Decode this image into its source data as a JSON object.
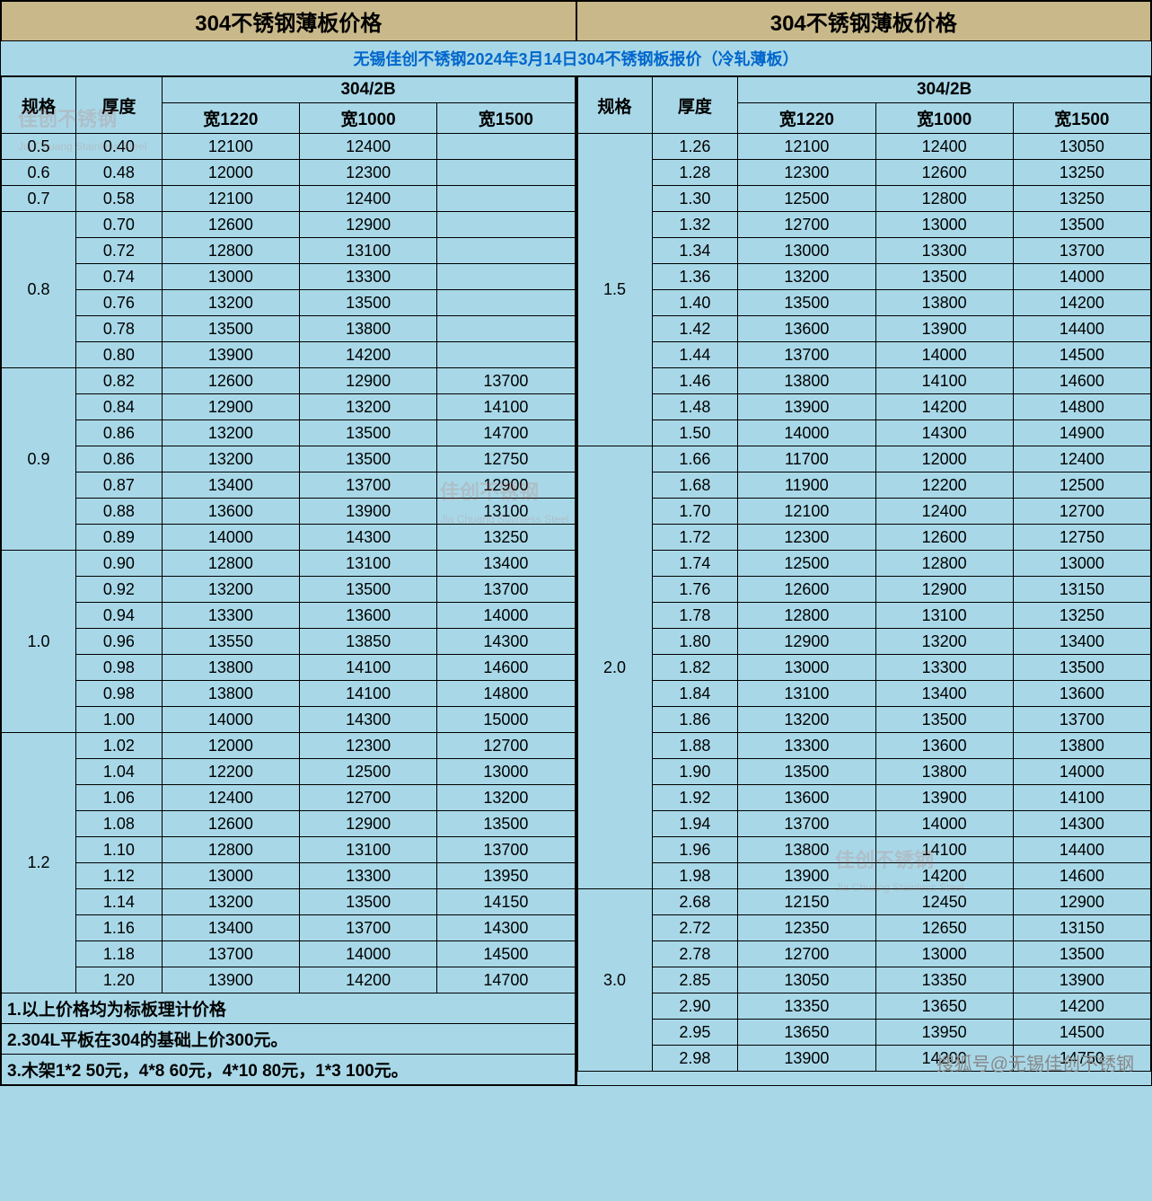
{
  "title_section": "304不锈钢薄板价格",
  "subtitle_text": "无锡佳创不锈钢2024年3月14日304不锈钢板报价（冷轧薄板）",
  "headers": {
    "spec": "规格",
    "thickness": "厚度",
    "finish": "304/2B",
    "w1220": "宽1220",
    "w1000": "宽1000",
    "w1500": "宽1500"
  },
  "colors": {
    "header_bg": "#c9b98a",
    "body_bg": "#a8d8e8",
    "subtitle_color": "#0066cc",
    "border": "#000000"
  },
  "typography": {
    "title_fontsize": 24,
    "subtitle_fontsize": 18,
    "header_fontsize": 19,
    "cell_fontsize": 18,
    "font_family": "Microsoft YaHei"
  },
  "left_groups": [
    {
      "spec": "0.5",
      "rows": [
        {
          "t": "0.40",
          "p": [
            "12100",
            "12400",
            ""
          ]
        }
      ]
    },
    {
      "spec": "0.6",
      "rows": [
        {
          "t": "0.48",
          "p": [
            "12000",
            "12300",
            ""
          ]
        }
      ]
    },
    {
      "spec": "0.7",
      "rows": [
        {
          "t": "0.58",
          "p": [
            "12100",
            "12400",
            ""
          ]
        }
      ]
    },
    {
      "spec": "0.8",
      "rows": [
        {
          "t": "0.70",
          "p": [
            "12600",
            "12900",
            ""
          ]
        },
        {
          "t": "0.72",
          "p": [
            "12800",
            "13100",
            ""
          ]
        },
        {
          "t": "0.74",
          "p": [
            "13000",
            "13300",
            ""
          ]
        },
        {
          "t": "0.76",
          "p": [
            "13200",
            "13500",
            ""
          ]
        },
        {
          "t": "0.78",
          "p": [
            "13500",
            "13800",
            ""
          ]
        },
        {
          "t": "0.80",
          "p": [
            "13900",
            "14200",
            ""
          ]
        }
      ]
    },
    {
      "spec": "0.9",
      "rows": [
        {
          "t": "0.82",
          "p": [
            "12600",
            "12900",
            "13700"
          ]
        },
        {
          "t": "0.84",
          "p": [
            "12900",
            "13200",
            "14100"
          ]
        },
        {
          "t": "0.86",
          "p": [
            "13200",
            "13500",
            "14700"
          ]
        },
        {
          "t": "0.86",
          "p": [
            "13200",
            "13500",
            "12750"
          ]
        },
        {
          "t": "0.87",
          "p": [
            "13400",
            "13700",
            "12900"
          ]
        },
        {
          "t": "0.88",
          "p": [
            "13600",
            "13900",
            "13100"
          ]
        },
        {
          "t": "0.89",
          "p": [
            "14000",
            "14300",
            "13250"
          ]
        }
      ]
    },
    {
      "spec": "1.0",
      "rows": [
        {
          "t": "0.90",
          "p": [
            "12800",
            "13100",
            "13400"
          ]
        },
        {
          "t": "0.92",
          "p": [
            "13200",
            "13500",
            "13700"
          ]
        },
        {
          "t": "0.94",
          "p": [
            "13300",
            "13600",
            "14000"
          ]
        },
        {
          "t": "0.96",
          "p": [
            "13550",
            "13850",
            "14300"
          ]
        },
        {
          "t": "0.98",
          "p": [
            "13800",
            "14100",
            "14600"
          ]
        },
        {
          "t": "0.98",
          "p": [
            "13800",
            "14100",
            "14800"
          ]
        },
        {
          "t": "1.00",
          "p": [
            "14000",
            "14300",
            "15000"
          ]
        }
      ]
    },
    {
      "spec": "1.2",
      "rows": [
        {
          "t": "1.02",
          "p": [
            "12000",
            "12300",
            "12700"
          ]
        },
        {
          "t": "1.04",
          "p": [
            "12200",
            "12500",
            "13000"
          ]
        },
        {
          "t": "1.06",
          "p": [
            "12400",
            "12700",
            "13200"
          ]
        },
        {
          "t": "1.08",
          "p": [
            "12600",
            "12900",
            "13500"
          ]
        },
        {
          "t": "1.10",
          "p": [
            "12800",
            "13100",
            "13700"
          ]
        },
        {
          "t": "1.12",
          "p": [
            "13000",
            "13300",
            "13950"
          ]
        },
        {
          "t": "1.14",
          "p": [
            "13200",
            "13500",
            "14150"
          ]
        },
        {
          "t": "1.16",
          "p": [
            "13400",
            "13700",
            "14300"
          ]
        },
        {
          "t": "1.18",
          "p": [
            "13700",
            "14000",
            "14500"
          ]
        },
        {
          "t": "1.20",
          "p": [
            "13900",
            "14200",
            "14700"
          ]
        }
      ]
    }
  ],
  "right_groups": [
    {
      "spec": "1.5",
      "rows": [
        {
          "t": "1.26",
          "p": [
            "12100",
            "12400",
            "13050"
          ]
        },
        {
          "t": "1.28",
          "p": [
            "12300",
            "12600",
            "13250"
          ]
        },
        {
          "t": "1.30",
          "p": [
            "12500",
            "12800",
            "13250"
          ]
        },
        {
          "t": "1.32",
          "p": [
            "12700",
            "13000",
            "13500"
          ]
        },
        {
          "t": "1.34",
          "p": [
            "13000",
            "13300",
            "13700"
          ]
        },
        {
          "t": "1.36",
          "p": [
            "13200",
            "13500",
            "14000"
          ]
        },
        {
          "t": "1.40",
          "p": [
            "13500",
            "13800",
            "14200"
          ]
        },
        {
          "t": "1.42",
          "p": [
            "13600",
            "13900",
            "14400"
          ]
        },
        {
          "t": "1.44",
          "p": [
            "13700",
            "14000",
            "14500"
          ]
        },
        {
          "t": "1.46",
          "p": [
            "13800",
            "14100",
            "14600"
          ]
        },
        {
          "t": "1.48",
          "p": [
            "13900",
            "14200",
            "14800"
          ]
        },
        {
          "t": "1.50",
          "p": [
            "14000",
            "14300",
            "14900"
          ]
        }
      ]
    },
    {
      "spec": "2.0",
      "rows": [
        {
          "t": "1.66",
          "p": [
            "11700",
            "12000",
            "12400"
          ]
        },
        {
          "t": "1.68",
          "p": [
            "11900",
            "12200",
            "12500"
          ]
        },
        {
          "t": "1.70",
          "p": [
            "12100",
            "12400",
            "12700"
          ]
        },
        {
          "t": "1.72",
          "p": [
            "12300",
            "12600",
            "12750"
          ]
        },
        {
          "t": "1.74",
          "p": [
            "12500",
            "12800",
            "13000"
          ]
        },
        {
          "t": "1.76",
          "p": [
            "12600",
            "12900",
            "13150"
          ]
        },
        {
          "t": "1.78",
          "p": [
            "12800",
            "13100",
            "13250"
          ]
        },
        {
          "t": "1.80",
          "p": [
            "12900",
            "13200",
            "13400"
          ]
        },
        {
          "t": "1.82",
          "p": [
            "13000",
            "13300",
            "13500"
          ]
        },
        {
          "t": "1.84",
          "p": [
            "13100",
            "13400",
            "13600"
          ]
        },
        {
          "t": "1.86",
          "p": [
            "13200",
            "13500",
            "13700"
          ]
        },
        {
          "t": "1.88",
          "p": [
            "13300",
            "13600",
            "13800"
          ]
        },
        {
          "t": "1.90",
          "p": [
            "13500",
            "13800",
            "14000"
          ]
        },
        {
          "t": "1.92",
          "p": [
            "13600",
            "13900",
            "14100"
          ]
        },
        {
          "t": "1.94",
          "p": [
            "13700",
            "14000",
            "14300"
          ]
        },
        {
          "t": "1.96",
          "p": [
            "13800",
            "14100",
            "14400"
          ]
        },
        {
          "t": "1.98",
          "p": [
            "13900",
            "14200",
            "14600"
          ]
        }
      ]
    },
    {
      "spec": "3.0",
      "rows": [
        {
          "t": "2.68",
          "p": [
            "12150",
            "12450",
            "12900"
          ]
        },
        {
          "t": "2.72",
          "p": [
            "12350",
            "12650",
            "13150"
          ]
        },
        {
          "t": "2.78",
          "p": [
            "12700",
            "13000",
            "13500"
          ]
        },
        {
          "t": "2.85",
          "p": [
            "13050",
            "13350",
            "13900"
          ]
        },
        {
          "t": "2.90",
          "p": [
            "13350",
            "13650",
            "14200"
          ]
        },
        {
          "t": "2.95",
          "p": [
            "13650",
            "13950",
            "14500"
          ]
        },
        {
          "t": "2.98",
          "p": [
            "13900",
            "14200",
            "14750"
          ]
        }
      ]
    }
  ],
  "notes": [
    "1.以上价格均为标板理计价格",
    "2.304L平板在304的基础上价300元。",
    "3.木架1*2 50元，4*8 60元，4*10 80元，1*3 100元。"
  ],
  "watermarks": [
    {
      "text": "佳创不锈钢",
      "sub": "Jia Chuang Stainless Steel"
    }
  ],
  "footer_tag": "搜狐号@无锡佳创不锈钢"
}
